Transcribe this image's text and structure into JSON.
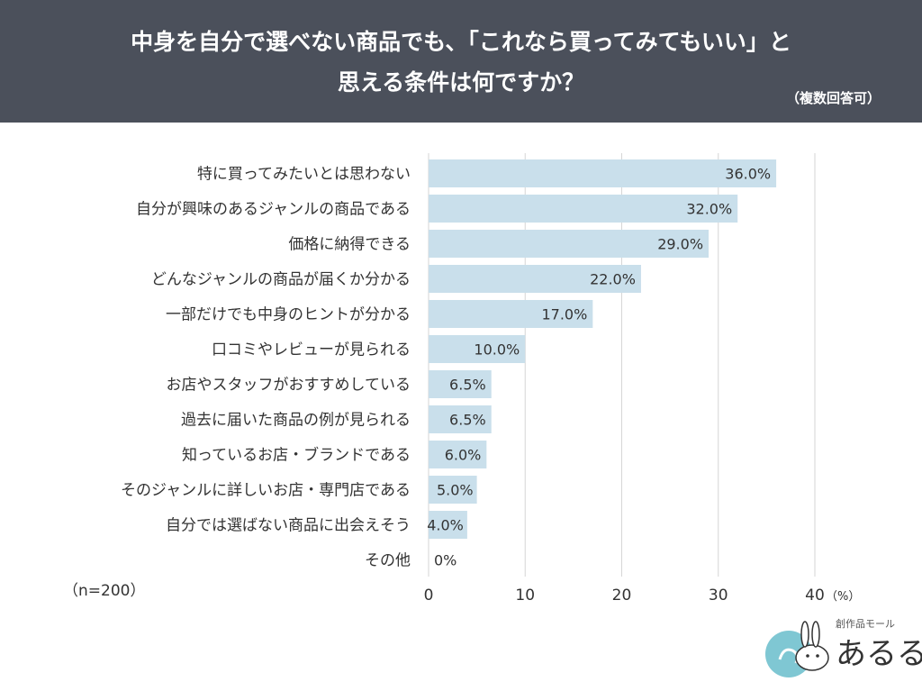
{
  "header": {
    "title_line1": "中身を自分で選べない商品でも、「これなら買ってみてもいい」と",
    "title_line2": "思える条件は何ですか？",
    "note": "（複数回答可）"
  },
  "sample_note": "（n=200）",
  "logo": {
    "kicker": "創作品モール",
    "word": "あるる"
  },
  "colors": {
    "header_bg": "#4b505b",
    "bar": "#c9dfeb",
    "grid": "#d6d6d6"
  },
  "chart_data": {
    "type": "bar",
    "orientation": "horizontal",
    "categories": [
      "特に買ってみたいとは思わない",
      "自分が興味のあるジャンルの商品である",
      "価格に納得できる",
      "どんなジャンルの商品が届くか分かる",
      "一部だけでも中身のヒントが分かる",
      "口コミやレビューが見られる",
      "お店やスタッフがおすすめしている",
      "過去に届いた商品の例が見られる",
      "知っているお店・ブランドである",
      "そのジャンルに詳しいお店・専門店である",
      "自分では選ばない商品に出会えそう",
      "その他"
    ],
    "values": [
      36.0,
      32.0,
      29.0,
      22.0,
      17.0,
      10.0,
      6.5,
      6.5,
      6.0,
      5.0,
      4.0,
      0
    ],
    "value_labels": [
      "36.0%",
      "32.0%",
      "29.0%",
      "22.0%",
      "17.0%",
      "10.0%",
      "6.5%",
      "6.5%",
      "6.0%",
      "5.0%",
      "4.0%",
      "0%"
    ],
    "x_ticks": [
      "0",
      "10",
      "20",
      "30",
      "40"
    ],
    "x_unit": "（%）",
    "xlim": [
      0,
      40
    ],
    "grid": true
  }
}
